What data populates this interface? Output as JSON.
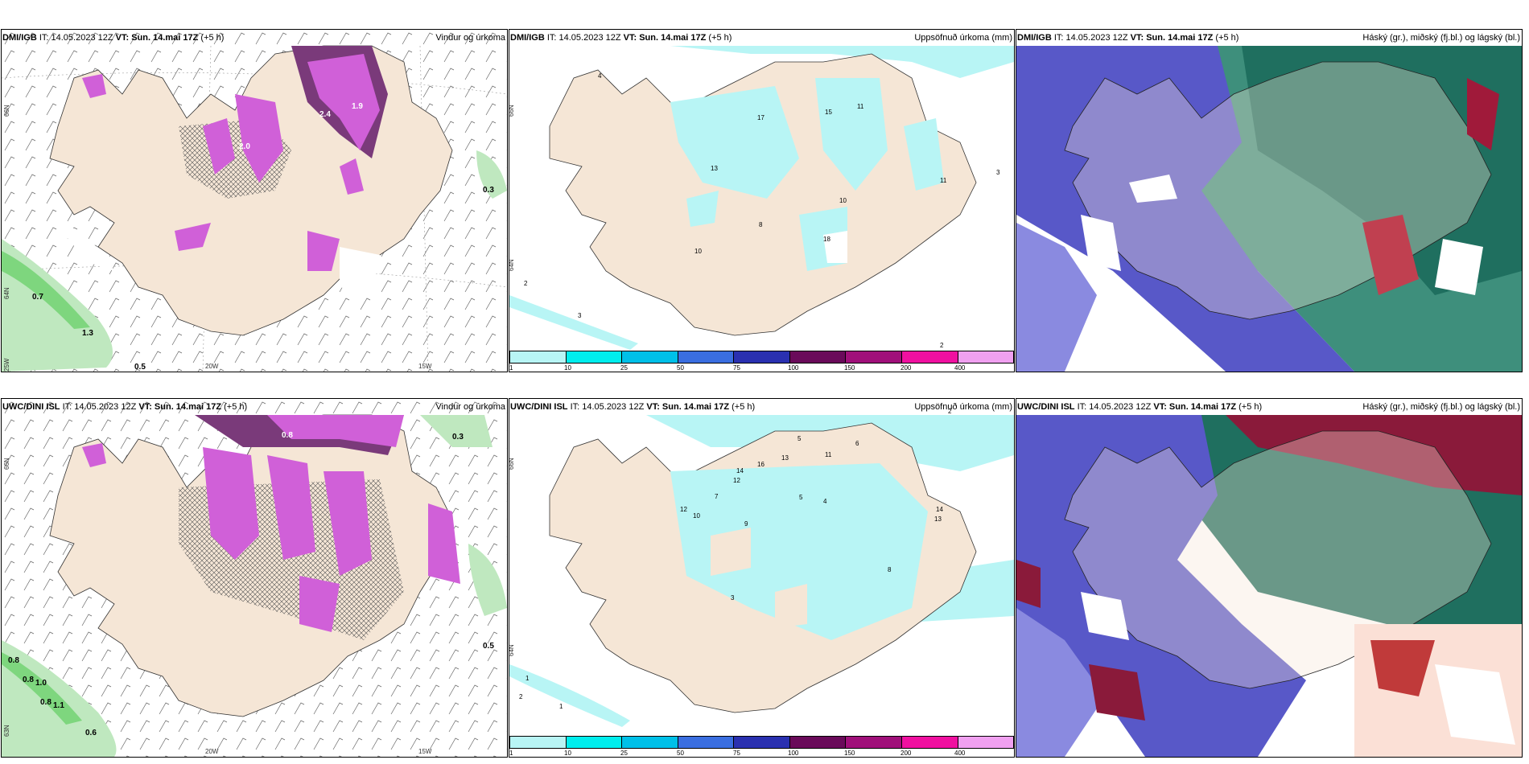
{
  "panels": [
    {
      "source": "DMI/IGB",
      "it": "IT: 14.05.2023 12Z",
      "vt_label": "VT:",
      "vt": "Sun. 14.mai 17Z",
      "lead": "(+5 h)",
      "right": "Vindur og úrkoma"
    },
    {
      "source": "DMI/IGB",
      "it": "IT: 14.05.2023 12Z",
      "vt_label": "VT:",
      "vt": "Sun. 14.mai 17Z",
      "lead": "(+5 h)",
      "right": "Uppsöfnuð úrkoma (mm)"
    },
    {
      "source": "DMI/IGB",
      "it": "IT: 14.05.2023 12Z",
      "vt_label": "VT:",
      "vt": "Sun. 14.mai 17Z",
      "lead": "(+5 h)",
      "right": "Háský (gr.), miðský (fj.bl.) og lágský (bl.)"
    },
    {
      "source": "UWC/DINI ISL",
      "it": "IT: 14.05.2023 12Z",
      "vt_label": "VT:",
      "vt": "Sun. 14.mai 17Z",
      "lead": "(+5 h)",
      "right": "Vindur og úrkoma"
    },
    {
      "source": "UWC/DINI ISL",
      "it": "IT: 14.05.2023 12Z",
      "vt_label": "VT:",
      "vt": "Sun. 14.mai 17Z",
      "lead": "(+5 h)",
      "right": "Uppsöfnuð úrkoma (mm)"
    },
    {
      "source": "UWC/DINI ISL",
      "it": "IT: 14.05.2023 12Z",
      "vt_label": "VT:",
      "vt": "Sun. 14.mai 17Z",
      "lead": "(+5 h)",
      "right": "Háský (gr.), miðský (fj.bl.) og lágský (bl.)"
    }
  ],
  "axes": {
    "lat66": "66N",
    "lat64": "64N",
    "lat63": "63N",
    "lon20": "20W",
    "lon15": "15W",
    "lon25": "25W"
  },
  "colorbar": {
    "ticks": [
      "1",
      "10",
      "25",
      "50",
      "75",
      "100",
      "150",
      "200",
      "400"
    ],
    "colors": [
      "#b8f5f5",
      "#00eeee",
      "#00c0e8",
      "#3a6ee0",
      "#2a30b0",
      "#6a0a5a",
      "#a0107a",
      "#f010a0",
      "#f0a0f0"
    ]
  },
  "wind_labels_top": [
    "0.7",
    "1.3",
    "0.5",
    "0.3",
    "1.9",
    "2.4",
    "2.0"
  ],
  "wind_labels_bottom": [
    "0.8",
    "0.8",
    "1.0",
    "0.8",
    "1.1",
    "0.6",
    "0.5",
    "0.8",
    "0.3"
  ],
  "precip_labels_top": [
    "17",
    "15",
    "11",
    "13",
    "10",
    "11",
    "3",
    "8",
    "18",
    "10",
    "2",
    "3",
    "2",
    "4"
  ],
  "precip_labels_bottom": [
    "2",
    "5",
    "6",
    "11",
    "13",
    "16",
    "14",
    "12",
    "10",
    "7",
    "9",
    "5",
    "12",
    "4",
    "14",
    "13",
    "8",
    "3",
    "1",
    "2",
    "1"
  ],
  "palette": {
    "land": "#f5e6d6",
    "wind_precip": "#d060d8",
    "wind_precip_dark": "#7a3a7a",
    "sea_green": "#7ed67e",
    "cyan_light": "#b8f5f5",
    "cloud_high": "#1f6f5f",
    "cloud_mid": "#5858c8",
    "cloud_low": "#8a1a3a"
  }
}
